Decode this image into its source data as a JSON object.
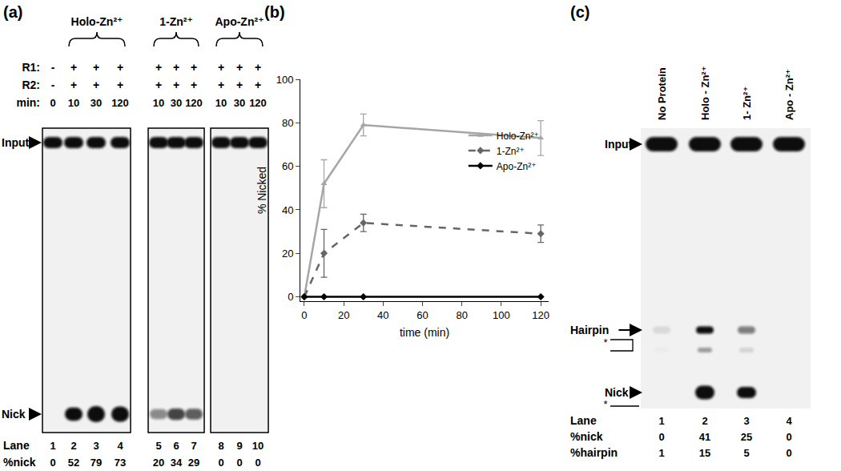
{
  "panel_a": {
    "label": "(a)",
    "groups": [
      {
        "name": "Holo-Zn²⁺",
        "lanes": [
          2,
          3,
          4
        ]
      },
      {
        "name": "1-Zn²⁺",
        "lanes": [
          5,
          6,
          7
        ]
      },
      {
        "name": "Apo-Zn²⁺",
        "lanes": [
          8,
          9,
          10
        ]
      }
    ],
    "row_labels": {
      "r1": "R1:",
      "r2": "R2:",
      "min": "min:",
      "lane": "Lane",
      "nick": "%nick"
    },
    "lanes": [
      {
        "lane": 1,
        "r1": "-",
        "r2": "-",
        "min": 0,
        "nick": 0
      },
      {
        "lane": 2,
        "r1": "+",
        "r2": "+",
        "min": 10,
        "nick": 52
      },
      {
        "lane": 3,
        "r1": "+",
        "r2": "+",
        "min": 30,
        "nick": 79
      },
      {
        "lane": 4,
        "r1": "+",
        "r2": "+",
        "min": 120,
        "nick": 73
      },
      {
        "lane": 5,
        "r1": "+",
        "r2": "+",
        "min": 10,
        "nick": 20
      },
      {
        "lane": 6,
        "r1": "+",
        "r2": "+",
        "min": 30,
        "nick": 34
      },
      {
        "lane": 7,
        "r1": "+",
        "r2": "+",
        "min": 120,
        "nick": 29
      },
      {
        "lane": 8,
        "r1": "+",
        "r2": "+",
        "min": 10,
        "nick": 0
      },
      {
        "lane": 9,
        "r1": "+",
        "r2": "+",
        "min": 30,
        "nick": 0
      },
      {
        "lane": 10,
        "r1": "+",
        "r2": "+",
        "min": 120,
        "nick": 0
      }
    ],
    "bands": {
      "input": "Input",
      "nick": "Nick"
    }
  },
  "panel_b": {
    "label": "(b)"
  },
  "chart_data": {
    "type": "line",
    "x_label": "time (min)",
    "y_label": "% Nicked",
    "x": [
      0,
      10,
      30,
      120
    ],
    "xlim": [
      -2,
      124
    ],
    "xticks": [
      0,
      20,
      40,
      60,
      80,
      100,
      120
    ],
    "ylim": [
      -2,
      100
    ],
    "yticks": [
      0,
      20,
      40,
      60,
      80,
      100
    ],
    "grid": false,
    "legend": "top right",
    "series": [
      {
        "name": "Holo-Zn²⁺",
        "color": "#a6a6a6",
        "marker": "triangle-up",
        "line_style": "solid",
        "values": [
          0,
          52,
          79,
          73
        ],
        "error": [
          0,
          11,
          5,
          8
        ]
      },
      {
        "name": "1-Zn²⁺",
        "color": "#666666",
        "marker": "diamond",
        "line_style": "dash",
        "values": [
          0,
          20,
          34,
          29
        ],
        "error": [
          0,
          11,
          4,
          4
        ]
      },
      {
        "name": "Apo-Zn²⁺",
        "color": "#000000",
        "marker": "diamond",
        "line_style": "solid",
        "values": [
          0,
          0,
          0,
          0
        ]
      }
    ]
  },
  "panel_c": {
    "label": "(c)",
    "lanes": [
      {
        "lane": 1,
        "name": "No Protein",
        "nick": 0,
        "hairpin": 1
      },
      {
        "lane": 2,
        "name": "Holo - Zn²⁺",
        "nick": 41,
        "hairpin": 15
      },
      {
        "lane": 3,
        "name": "1- Zn²⁺",
        "nick": 25,
        "hairpin": 5
      },
      {
        "lane": 4,
        "name": "Apo - Zn²⁺",
        "nick": 0,
        "hairpin": 0
      }
    ],
    "row_labels": {
      "lane": "Lane",
      "nick": "%nick",
      "hairpin": "%hairpin"
    },
    "bands": {
      "input": "Input",
      "hairpin": "Hairpin",
      "nick": "Nick"
    },
    "end_mark": "*"
  }
}
